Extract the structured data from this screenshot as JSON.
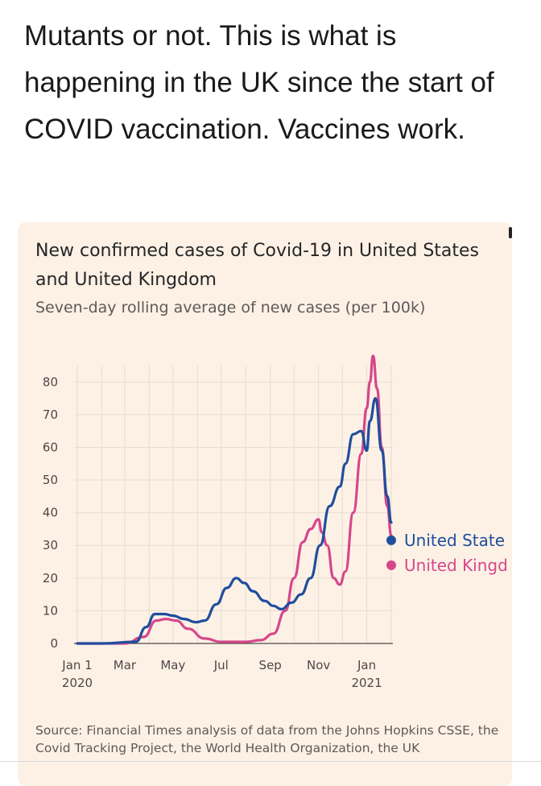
{
  "tweet": {
    "text": "Mutants or not. This is what is happening in the UK since the start of COVID vaccination. Vaccines work."
  },
  "card": {
    "title": "New confirmed cases of Covid-19 in United States and United Kingdom",
    "subtitle": "Seven-day rolling average of new cases (per 100k)",
    "source": "Source: Financial Times analysis of data from the Johns Hopkins CSSE, the Covid Tracking Project, the World Health Organization, the UK"
  },
  "chart_data": {
    "type": "line",
    "title": "New confirmed cases of Covid-19 in United States and United Kingdom",
    "subtitle": "Seven-day rolling average of new cases (per 100k)",
    "ylim": [
      0,
      85
    ],
    "yticks": [
      0,
      10,
      20,
      30,
      40,
      50,
      60,
      70,
      80
    ],
    "xlim": [
      "2020-01-01",
      "2021-02-01"
    ],
    "xticks": [
      {
        "date": "2020-01-01",
        "label": "Jan 1",
        "sublabel": "2020"
      },
      {
        "date": "2020-03-01",
        "label": "Mar",
        "sublabel": ""
      },
      {
        "date": "2020-05-01",
        "label": "May",
        "sublabel": ""
      },
      {
        "date": "2020-07-01",
        "label": "Jul",
        "sublabel": ""
      },
      {
        "date": "2020-09-01",
        "label": "Sep",
        "sublabel": ""
      },
      {
        "date": "2020-11-01",
        "label": "Nov",
        "sublabel": ""
      },
      {
        "date": "2021-01-01",
        "label": "Jan",
        "sublabel": "2021"
      }
    ],
    "grid": true,
    "legend_placement": "right, at line ends",
    "series": [
      {
        "name": "United States",
        "color": "#1f4e9c",
        "points": [
          [
            "2020-01-01",
            0
          ],
          [
            "2020-02-01",
            0
          ],
          [
            "2020-03-15",
            0.5
          ],
          [
            "2020-03-28",
            5
          ],
          [
            "2020-04-08",
            9
          ],
          [
            "2020-04-20",
            9
          ],
          [
            "2020-05-01",
            8.5
          ],
          [
            "2020-05-15",
            7.5
          ],
          [
            "2020-05-30",
            6.5
          ],
          [
            "2020-06-10",
            7
          ],
          [
            "2020-06-25",
            12
          ],
          [
            "2020-07-08",
            17
          ],
          [
            "2020-07-20",
            20
          ],
          [
            "2020-07-30",
            18.5
          ],
          [
            "2020-08-10",
            16
          ],
          [
            "2020-08-25",
            13
          ],
          [
            "2020-09-05",
            11.5
          ],
          [
            "2020-09-15",
            10.5
          ],
          [
            "2020-09-28",
            12.5
          ],
          [
            "2020-10-10",
            15
          ],
          [
            "2020-10-22",
            20
          ],
          [
            "2020-11-03",
            30
          ],
          [
            "2020-11-15",
            42
          ],
          [
            "2020-11-28",
            48
          ],
          [
            "2020-12-05",
            55
          ],
          [
            "2020-12-15",
            64
          ],
          [
            "2020-12-25",
            65
          ],
          [
            "2021-01-01",
            59
          ],
          [
            "2021-01-05",
            68
          ],
          [
            "2021-01-12",
            75
          ],
          [
            "2021-01-20",
            59
          ],
          [
            "2021-01-27",
            45
          ],
          [
            "2021-02-01",
            37
          ]
        ]
      },
      {
        "name": "United Kingdom",
        "color": "#d6478a",
        "points": [
          [
            "2020-01-01",
            0
          ],
          [
            "2020-03-01",
            0
          ],
          [
            "2020-03-25",
            2
          ],
          [
            "2020-04-10",
            7
          ],
          [
            "2020-04-22",
            7.5
          ],
          [
            "2020-05-05",
            7
          ],
          [
            "2020-05-20",
            4.5
          ],
          [
            "2020-06-10",
            1.5
          ],
          [
            "2020-07-01",
            0.5
          ],
          [
            "2020-08-01",
            0.5
          ],
          [
            "2020-08-20",
            1
          ],
          [
            "2020-09-05",
            3
          ],
          [
            "2020-09-20",
            10
          ],
          [
            "2020-10-01",
            20
          ],
          [
            "2020-10-12",
            31
          ],
          [
            "2020-10-22",
            35
          ],
          [
            "2020-11-01",
            38
          ],
          [
            "2020-11-05",
            34
          ],
          [
            "2020-11-12",
            30
          ],
          [
            "2020-11-20",
            20
          ],
          [
            "2020-11-28",
            18
          ],
          [
            "2020-12-05",
            22
          ],
          [
            "2020-12-15",
            40
          ],
          [
            "2020-12-25",
            58
          ],
          [
            "2021-01-01",
            72
          ],
          [
            "2021-01-05",
            80
          ],
          [
            "2021-01-09",
            88
          ],
          [
            "2021-01-14",
            78
          ],
          [
            "2021-01-20",
            60
          ],
          [
            "2021-01-27",
            42
          ],
          [
            "2021-02-01",
            33
          ]
        ]
      }
    ]
  },
  "legend": {
    "us_label": "United State",
    "uk_label": "United Kingd"
  }
}
